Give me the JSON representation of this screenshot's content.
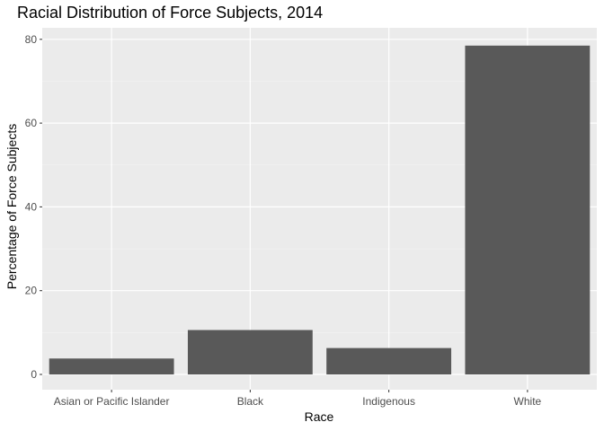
{
  "chart_data": {
    "type": "bar",
    "title": "Racial Distribution of Force Subjects, 2014",
    "xlabel": "Race",
    "ylabel": "Percentage of Force Subjects",
    "categories": [
      "Asian or Pacific Islander",
      "Black",
      "Indigenous",
      "White"
    ],
    "values": [
      3.8,
      10.6,
      6.3,
      78.5
    ],
    "ylim": [
      0,
      82
    ],
    "yticks": [
      0,
      20,
      40,
      60,
      80
    ],
    "grid": true,
    "legend": "none",
    "colors": {
      "bar": "#595959",
      "panel_background": "#ebebeb",
      "grid_major": "#ffffff",
      "grid_minor": "#f4f4f4",
      "tick_text": "#4d4d4d",
      "tick_mark": "#333333"
    }
  }
}
